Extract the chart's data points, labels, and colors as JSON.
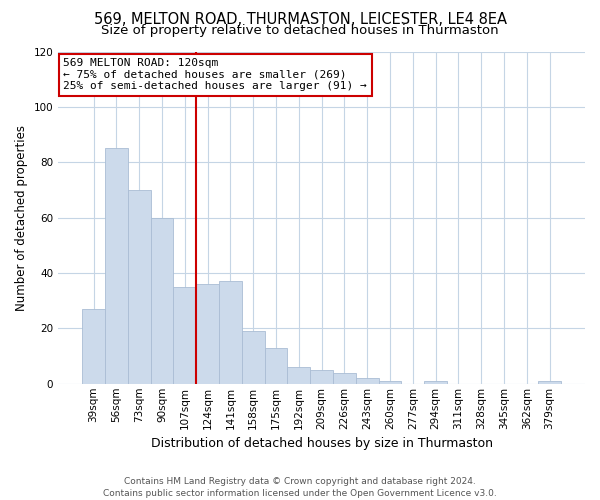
{
  "title": "569, MELTON ROAD, THURMASTON, LEICESTER, LE4 8EA",
  "subtitle": "Size of property relative to detached houses in Thurmaston",
  "xlabel": "Distribution of detached houses by size in Thurmaston",
  "ylabel": "Number of detached properties",
  "categories": [
    "39sqm",
    "56sqm",
    "73sqm",
    "90sqm",
    "107sqm",
    "124sqm",
    "141sqm",
    "158sqm",
    "175sqm",
    "192sqm",
    "209sqm",
    "226sqm",
    "243sqm",
    "260sqm",
    "277sqm",
    "294sqm",
    "311sqm",
    "328sqm",
    "345sqm",
    "362sqm",
    "379sqm"
  ],
  "values": [
    27,
    85,
    70,
    60,
    35,
    36,
    37,
    19,
    13,
    6,
    5,
    4,
    2,
    1,
    0,
    1,
    0,
    0,
    0,
    0,
    1
  ],
  "bar_color": "#ccdaeb",
  "bar_edge_color": "#aabdd4",
  "vline_color": "#cc0000",
  "vline_index": 5,
  "annotation_line1": "569 MELTON ROAD: 120sqm",
  "annotation_line2": "← 75% of detached houses are smaller (269)",
  "annotation_line3": "25% of semi-detached houses are larger (91) →",
  "annotation_box_facecolor": "#ffffff",
  "annotation_box_edgecolor": "#cc0000",
  "ylim": [
    0,
    120
  ],
  "yticks": [
    0,
    20,
    40,
    60,
    80,
    100,
    120
  ],
  "footnote": "Contains HM Land Registry data © Crown copyright and database right 2024.\nContains public sector information licensed under the Open Government Licence v3.0.",
  "background_color": "#ffffff",
  "grid_color": "#c5d5e5",
  "title_fontsize": 10.5,
  "subtitle_fontsize": 9.5,
  "xlabel_fontsize": 9,
  "ylabel_fontsize": 8.5,
  "tick_fontsize": 7.5,
  "annot_fontsize": 8,
  "footnote_fontsize": 6.5
}
